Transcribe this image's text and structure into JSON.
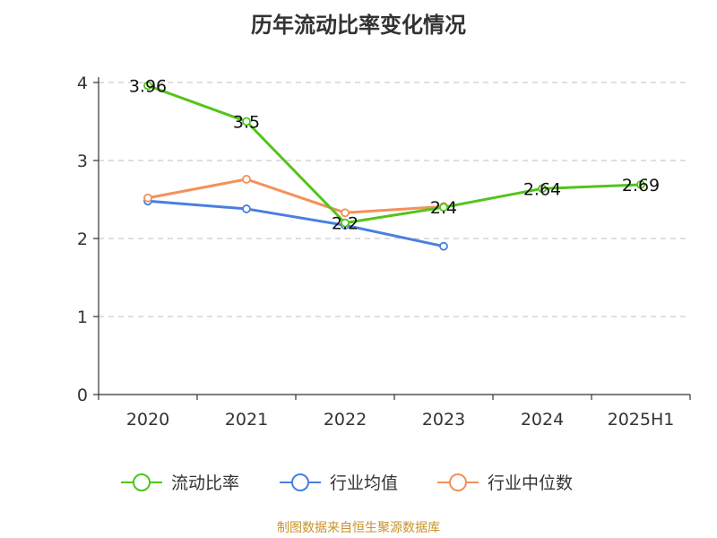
{
  "title": "历年流动比率变化情况",
  "source": "制图数据来自恒生聚源数据库",
  "colors": {
    "series_1": "#52c41a",
    "series_2": "#4a7fe0",
    "series_3": "#f2915a",
    "grid": "#cccccc",
    "axis": "#333333",
    "source_text": "#c8922a"
  },
  "chart_data": {
    "type": "line",
    "title": "历年流动比率变化情况",
    "categories": [
      "2020",
      "2021",
      "2022",
      "2023",
      "2024",
      "2025H1"
    ],
    "ylim": [
      0,
      4
    ],
    "yticks": [
      0,
      1,
      2,
      3,
      4
    ],
    "grid": true,
    "grid_style": "dashed",
    "legend_position": "bottom",
    "series": [
      {
        "name": "流动比率",
        "values": [
          3.96,
          3.5,
          2.2,
          2.4,
          2.64,
          2.69
        ],
        "labels": [
          "3.96",
          "3.5",
          "2.2",
          "2.4",
          "2.64",
          "2.69"
        ],
        "color_key": "series_1"
      },
      {
        "name": "行业均值",
        "values": [
          2.48,
          2.38,
          2.17,
          1.9,
          null,
          null
        ],
        "color_key": "series_2"
      },
      {
        "name": "行业中位数",
        "values": [
          2.52,
          2.76,
          2.33,
          2.41,
          null,
          null
        ],
        "color_key": "series_3"
      }
    ]
  }
}
